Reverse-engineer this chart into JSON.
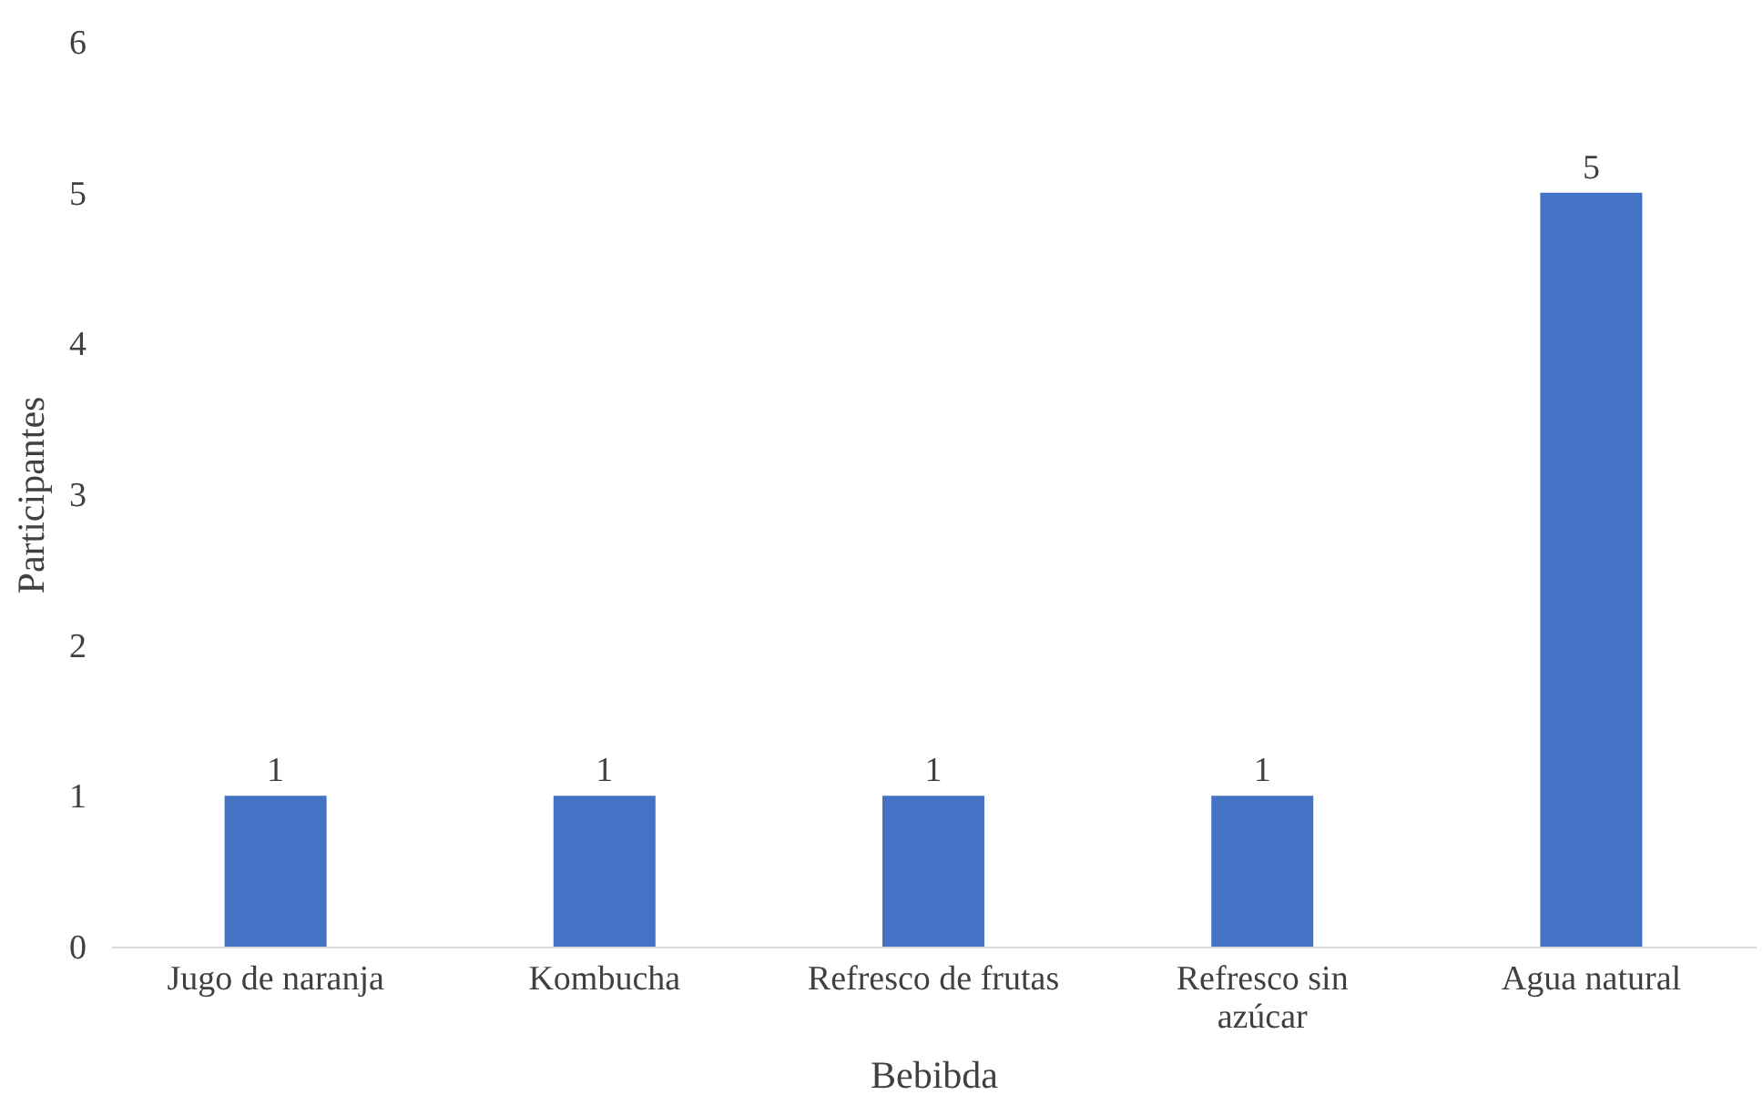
{
  "chart_data": {
    "type": "bar",
    "xlabel": "Bebibda",
    "ylabel": "Participantes",
    "categories": [
      "Jugo de naranja",
      "Kombucha",
      "Refresco de frutas",
      "Refresco sin azúcar",
      "Agua natural"
    ],
    "values": [
      1,
      1,
      1,
      1,
      5
    ],
    "color": "#4472c4",
    "ylim": [
      0,
      6
    ],
    "yticks": [
      0,
      1,
      2,
      3,
      4,
      5,
      6
    ],
    "grid": false,
    "data_labels": true
  }
}
